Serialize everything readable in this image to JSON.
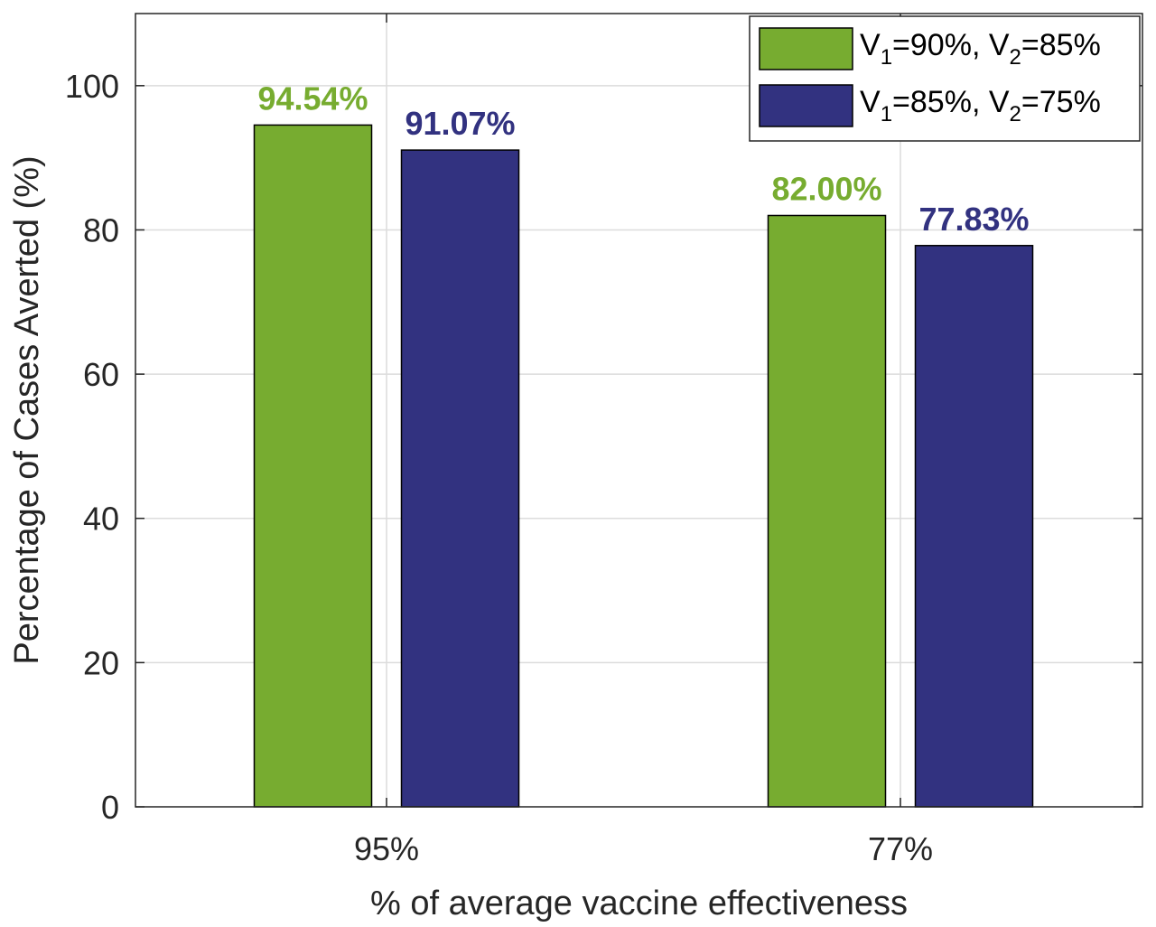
{
  "chart_data": {
    "type": "bar",
    "categories": [
      "95%",
      "77%"
    ],
    "series": [
      {
        "name_parts": [
          "V",
          "1",
          "=90%, V",
          "2",
          "=85%"
        ],
        "color": "#77AC30",
        "values": [
          94.54,
          82.0
        ],
        "labels": [
          "94.54%",
          "82.00%"
        ]
      },
      {
        "name_parts": [
          "V",
          "1",
          "=85%, V",
          "2",
          "=75%"
        ],
        "color": "#323280",
        "values": [
          91.07,
          77.83
        ],
        "labels": [
          "91.07%",
          "77.83%"
        ]
      }
    ],
    "xlabel": "% of average vaccine effectiveness",
    "ylabel": "Percentage of Cases Averted (%)",
    "ylim": [
      0,
      110
    ],
    "yticks": [
      0,
      20,
      40,
      60,
      80,
      100
    ],
    "grid": true,
    "legend_position": "top-right"
  }
}
